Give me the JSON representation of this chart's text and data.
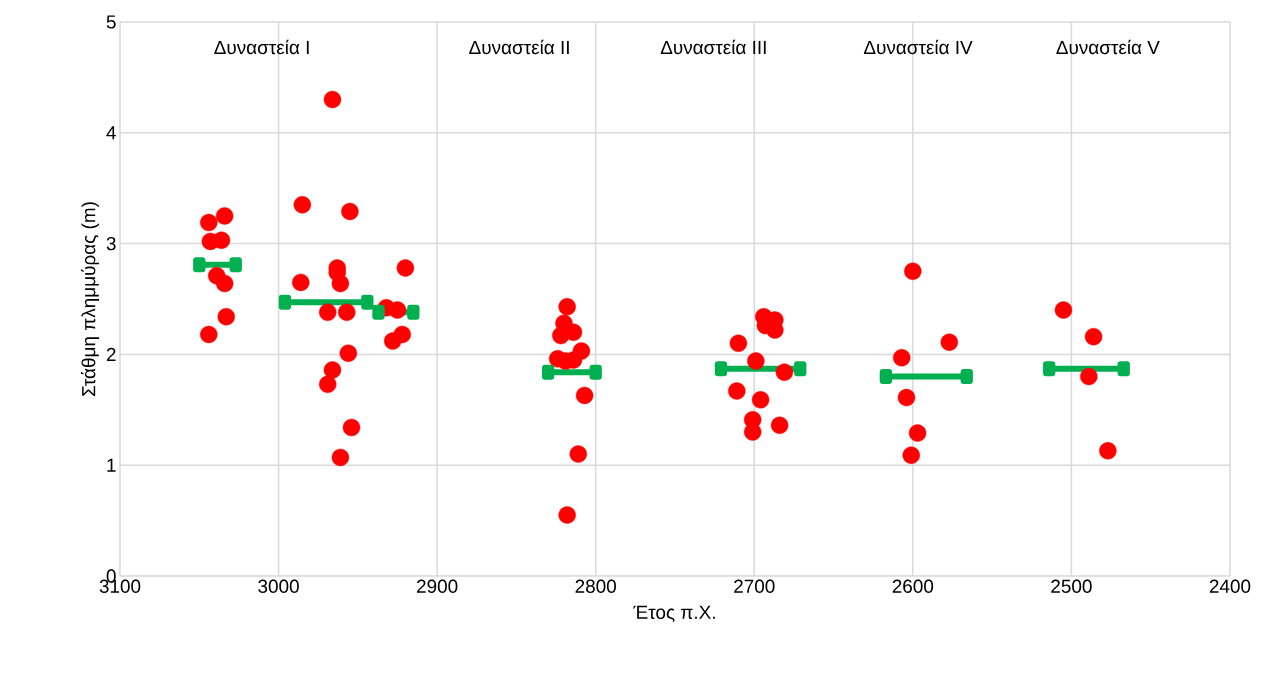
{
  "chart_data": {
    "type": "scatter",
    "xlabel": "Έτος π.Χ.",
    "ylabel": "Στάθμη πλημμύρας (m)",
    "xlim": [
      3100,
      2400
    ],
    "ylim": [
      0,
      5
    ],
    "xticks": [
      3100,
      3000,
      2900,
      2800,
      2700,
      2600,
      2500,
      2400
    ],
    "yticks": [
      0,
      1,
      2,
      3,
      4,
      5
    ],
    "grid": true,
    "annotations": [
      "Δυναστεία I",
      "Δυναστεία II",
      "Δυναστεία III",
      "Δυναστεία IV",
      "Δυναστεία V"
    ],
    "series": [
      {
        "color": "#ff0000",
        "marker": "circle",
        "x": [
          3044,
          3034,
          3043,
          3036,
          3039,
          3034,
          3033,
          3044,
          2966,
          2985,
          2955,
          2963,
          2963,
          2961,
          2986,
          2969,
          2957,
          2956,
          2966,
          2969,
          2954,
          2961,
          2920,
          2932,
          2925,
          2922,
          2928,
          2818,
          2820,
          2814,
          2822,
          2809,
          2824,
          2819,
          2814,
          2807,
          2811,
          2818,
          2694,
          2687,
          2693,
          2687,
          2710,
          2699,
          2681,
          2711,
          2696,
          2701,
          2701,
          2684,
          2600,
          2577,
          2607,
          2604,
          2597,
          2601,
          2505,
          2486,
          2489,
          2477
        ],
        "values": [
          3.19,
          3.25,
          3.02,
          3.03,
          2.71,
          2.64,
          2.34,
          2.18,
          4.3,
          3.35,
          3.29,
          2.78,
          2.74,
          2.64,
          2.65,
          2.38,
          2.38,
          2.01,
          1.86,
          1.73,
          1.34,
          1.07,
          2.78,
          2.42,
          2.4,
          2.18,
          2.12,
          2.43,
          2.28,
          2.2,
          2.17,
          2.03,
          1.96,
          1.94,
          1.95,
          1.63,
          1.1,
          0.55,
          2.34,
          2.31,
          2.26,
          2.22,
          2.1,
          1.94,
          1.84,
          1.67,
          1.59,
          1.41,
          1.3,
          1.36,
          2.75,
          2.11,
          1.97,
          1.61,
          1.29,
          1.09,
          2.4,
          2.16,
          1.8,
          1.13
        ]
      },
      {
        "type": "line",
        "color": "#00b050",
        "marker": "square",
        "x": [
          3050,
          3027,
          null,
          2996,
          2944,
          null,
          2937,
          2915,
          null,
          2830,
          2800,
          null,
          2721,
          2671,
          null,
          2617,
          2566,
          null,
          2514,
          2467
        ],
        "values": [
          2.81,
          2.81,
          null,
          2.47,
          2.47,
          null,
          2.38,
          2.38,
          null,
          1.84,
          1.84,
          null,
          1.87,
          1.87,
          null,
          1.8,
          1.8,
          null,
          1.87,
          1.87
        ]
      }
    ]
  }
}
